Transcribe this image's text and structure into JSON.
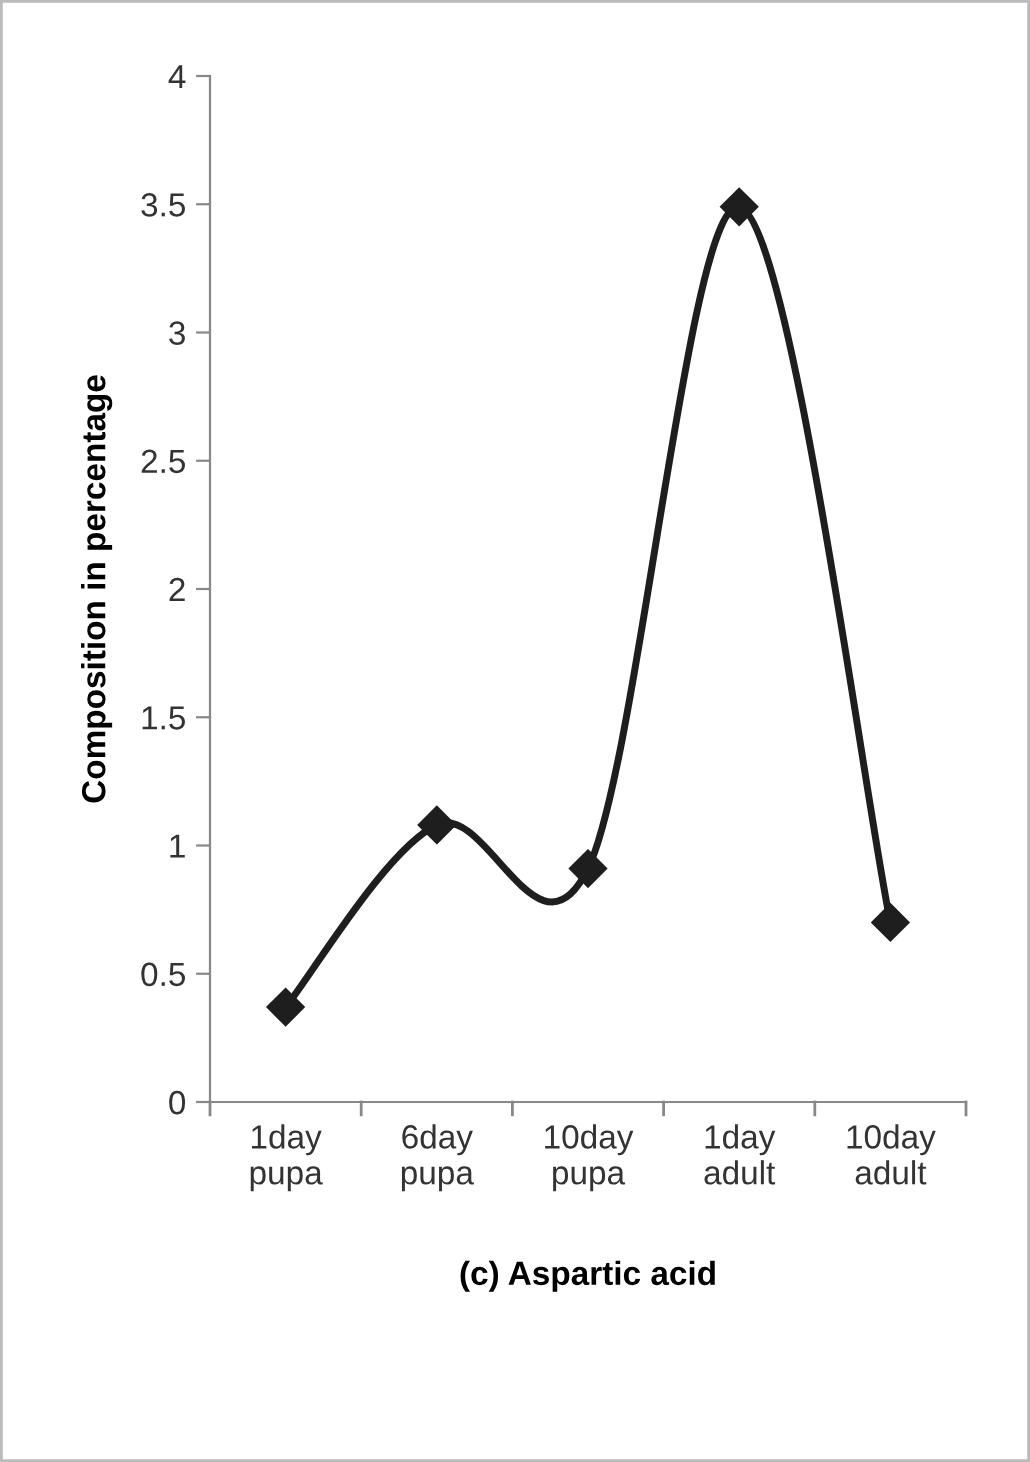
{
  "chart_data": {
    "type": "line",
    "xlabel": "(c) Aspartic acid",
    "ylabel": "Composition in percentage",
    "categories": [
      "1day\npupa",
      "6day\npupa",
      "10day\npupa",
      "1day\nadult",
      "10day\nadult"
    ],
    "series": [
      {
        "color": "#1e1e1e",
        "values": [
          0.37,
          1.08,
          0.91,
          3.49,
          0.7
        ]
      }
    ],
    "ylim": [
      0,
      4
    ],
    "yticks": [
      0,
      0.5,
      1,
      1.5,
      2,
      2.5,
      3,
      3.5,
      4
    ],
    "marker": "diamond",
    "line_style": "solid",
    "grid": false,
    "legend": false
  }
}
